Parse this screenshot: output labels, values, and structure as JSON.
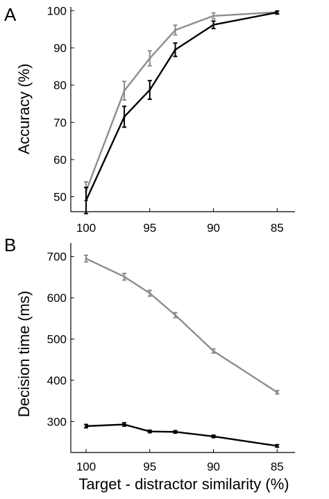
{
  "colors": {
    "series_gray": "#8c8c8c",
    "series_black": "#000000",
    "axis": "#000000"
  },
  "chart_data": [
    {
      "type": "line",
      "panel_label": "A",
      "xlabel": "",
      "ylabel": "Accuracy (%)",
      "x": [
        100,
        97,
        95,
        93,
        90,
        85
      ],
      "x_ticks": [
        100,
        95,
        90,
        85
      ],
      "xlim": [
        101.2,
        83.6
      ],
      "x_reversed": true,
      "y_ticks": [
        50,
        60,
        70,
        80,
        90,
        100
      ],
      "ylim": [
        46,
        101
      ],
      "grid": false,
      "series": [
        {
          "color": "#8c8c8c",
          "values": [
            51.5,
            78.5,
            87.2,
            94.8,
            98.6,
            99.6
          ],
          "errors": [
            2.5,
            2.5,
            2.0,
            1.3,
            0.8,
            0.3
          ]
        },
        {
          "color": "#000000",
          "values": [
            49.0,
            71.5,
            78.7,
            89.5,
            96.2,
            99.5
          ],
          "errors": [
            3.5,
            2.8,
            2.5,
            1.8,
            1.0,
            0.4
          ]
        }
      ]
    },
    {
      "type": "line",
      "panel_label": "B",
      "xlabel": "Target - distractor similarity (%)",
      "ylabel": "Decision time (ms)",
      "x": [
        100,
        97,
        95,
        93,
        90,
        85
      ],
      "x_ticks": [
        100,
        95,
        90,
        85
      ],
      "xlim": [
        101.2,
        83.6
      ],
      "x_reversed": true,
      "y_ticks": [
        300,
        400,
        500,
        600,
        700
      ],
      "ylim": [
        225,
        733
      ],
      "grid": false,
      "series": [
        {
          "color": "#8c8c8c",
          "values": [
            695,
            651,
            611,
            558,
            471,
            371
          ],
          "errors": [
            8,
            8,
            7,
            6,
            5,
            4
          ]
        },
        {
          "color": "#000000",
          "values": [
            289,
            293,
            276,
            275,
            264,
            241
          ],
          "errors": [
            4,
            4,
            3,
            3,
            3,
            3
          ]
        }
      ]
    }
  ]
}
